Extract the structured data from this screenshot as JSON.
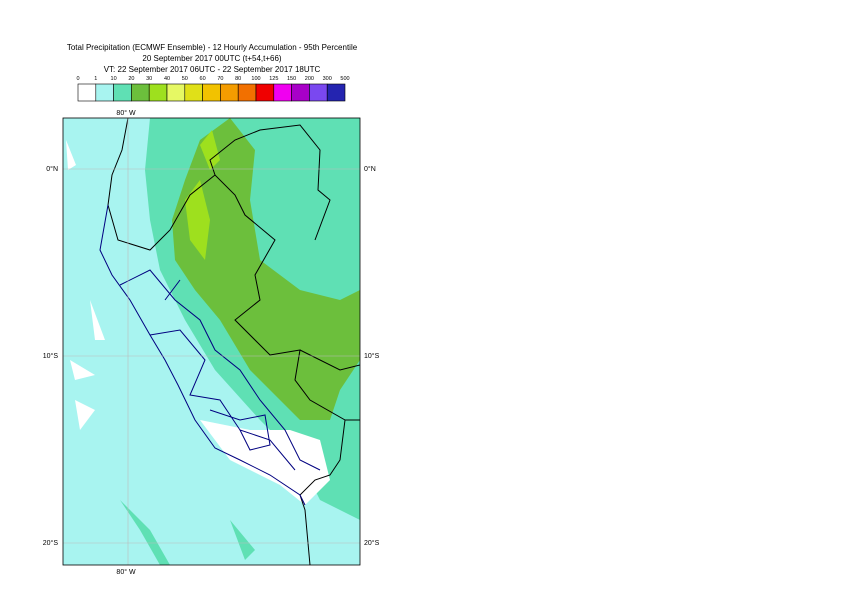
{
  "header": {
    "title": "Total Precipitation (ECMWF Ensemble) - 12 Hourly Accumulation - 95th Percentile",
    "line2": "20 September 2017 00UTC (t+54,t+66)",
    "line3": "VT: 22 September 2017 06UTC - 22 September 2017 18UTC"
  },
  "legend": {
    "labels": [
      "0",
      "1",
      "10",
      "20",
      "30",
      "40",
      "50",
      "60",
      "70",
      "80",
      "100",
      "125",
      "150",
      "200",
      "300",
      "500"
    ],
    "colors": [
      "#ffffff",
      "#a8f4f0",
      "#5fe0b4",
      "#6cbf3c",
      "#9ee01e",
      "#e6f864",
      "#e0e018",
      "#f2c200",
      "#f49c00",
      "#f27000",
      "#f00000",
      "#f000f0",
      "#a800c8",
      "#7a48f0",
      "#2424b0",
      "#101058"
    ]
  },
  "map": {
    "lon_labels": [
      "80° W"
    ],
    "lat_labels": [
      "0°N",
      "10°S",
      "20°S"
    ]
  }
}
